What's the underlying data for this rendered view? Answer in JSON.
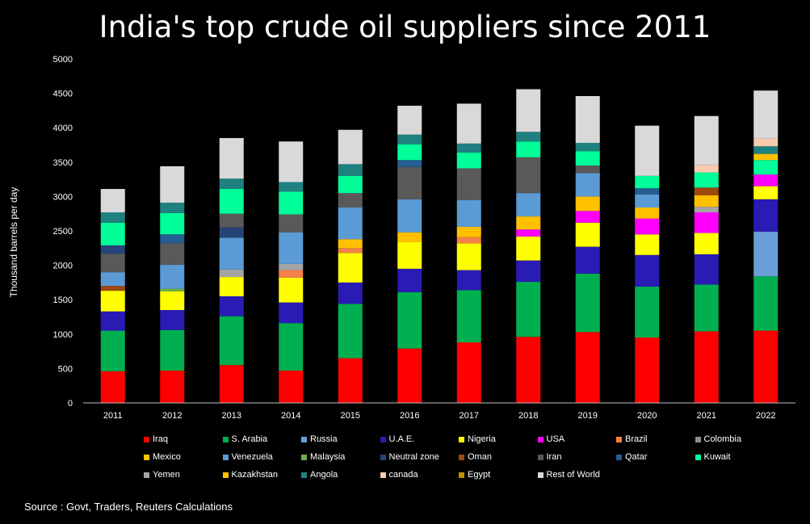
{
  "title": "India's top crude oil suppliers since 2011",
  "source": "Source : Govt, Traders, Reuters Calculations",
  "chart_data": {
    "type": "bar",
    "stacked": true,
    "title": "India's top crude oil suppliers since 2011",
    "xlabel": "",
    "ylabel": "Thousand barrels per day",
    "ylim": [
      0,
      5000
    ],
    "yticks": [
      0,
      500,
      1000,
      1500,
      2000,
      2500,
      3000,
      3500,
      4000,
      4500,
      5000
    ],
    "grid": false,
    "legend": "bottom",
    "categories": [
      "2011",
      "2012",
      "2013",
      "2014",
      "2015",
      "2016",
      "2017",
      "2018",
      "2019",
      "2020",
      "2021",
      "2022"
    ],
    "series": [
      {
        "name": "Iraq",
        "color": "#ff0000",
        "values": [
          460,
          470,
          550,
          470,
          650,
          790,
          880,
          960,
          1030,
          950,
          1040,
          1050
        ]
      },
      {
        "name": "S. Arabia",
        "color": "#00b050",
        "values": [
          590,
          590,
          710,
          690,
          790,
          820,
          760,
          800,
          850,
          740,
          680,
          790
        ]
      },
      {
        "name": "Russia",
        "color": "#6a9ed8",
        "values": [
          0,
          0,
          0,
          0,
          0,
          0,
          0,
          0,
          0,
          0,
          0,
          0
        ]
      },
      {
        "name": "U.A.E.",
        "color": "#2a1bb5",
        "values": [
          280,
          290,
          290,
          300,
          310,
          340,
          290,
          310,
          390,
          460,
          440,
          470
        ]
      },
      {
        "name": "Nigeria",
        "color": "#ffff00",
        "values": [
          300,
          270,
          280,
          360,
          430,
          390,
          390,
          350,
          350,
          300,
          310,
          190
        ]
      },
      {
        "name": "USA",
        "color": "#ff00ff",
        "values": [
          0,
          0,
          0,
          0,
          0,
          0,
          0,
          100,
          170,
          230,
          300,
          170
        ]
      },
      {
        "name": "Brazil",
        "color": "#f4804a",
        "values": [
          0,
          0,
          0,
          0,
          70,
          0,
          90,
          0,
          0,
          0,
          0,
          0
        ]
      },
      {
        "name": "Colombia",
        "color": "#8c8c8c",
        "values": [
          0,
          0,
          0,
          0,
          0,
          0,
          0,
          0,
          0,
          0,
          0,
          0
        ]
      },
      {
        "name": "Mexico",
        "color": "#ffc000",
        "values": [
          0,
          0,
          0,
          0,
          130,
          140,
          150,
          190,
          210,
          160,
          170,
          0
        ]
      },
      {
        "name": "Venezuela",
        "color": "#5b9bd5",
        "values": [
          200,
          350,
          0,
          0,
          0,
          0,
          0,
          0,
          0,
          0,
          0,
          0
        ]
      },
      {
        "name": "Malaysia",
        "color": "#70ad47",
        "values": [
          0,
          40,
          0,
          0,
          0,
          0,
          0,
          0,
          0,
          0,
          0,
          0
        ]
      },
      {
        "name": "Neutral zone",
        "color": "#264478",
        "values": [
          0,
          0,
          0,
          0,
          0,
          0,
          0,
          0,
          0,
          0,
          0,
          0
        ]
      },
      {
        "name": "Oman",
        "color": "#9e480e",
        "values": [
          70,
          0,
          0,
          0,
          0,
          0,
          0,
          0,
          0,
          0,
          0,
          0
        ]
      },
      {
        "name": "Iran",
        "color": "#595959",
        "values": [
          0,
          0,
          0,
          0,
          0,
          0,
          0,
          0,
          0,
          0,
          0,
          0
        ]
      },
      {
        "name": "Qatar",
        "color": "#255e91",
        "values": [
          0,
          0,
          0,
          0,
          0,
          0,
          0,
          0,
          0,
          0,
          0,
          0
        ]
      },
      {
        "name": "Kuwait",
        "color": "#00ff99",
        "values": [
          0,
          0,
          0,
          0,
          0,
          0,
          0,
          0,
          0,
          0,
          0,
          0
        ]
      },
      {
        "name": "Yemen",
        "color": "#a5a5a5",
        "values": [
          0,
          0,
          0,
          0,
          0,
          0,
          0,
          0,
          0,
          0,
          0,
          0
        ]
      },
      {
        "name": "Kazakhstan",
        "color": "#ffc000",
        "values": [
          0,
          0,
          0,
          0,
          0,
          0,
          0,
          0,
          0,
          0,
          0,
          0
        ]
      },
      {
        "name": "Angola",
        "color": "#1f8080",
        "values": [
          0,
          0,
          0,
          0,
          0,
          0,
          0,
          0,
          0,
          0,
          0,
          0
        ]
      },
      {
        "name": "canada",
        "color": "#f8cbad",
        "values": [
          0,
          0,
          0,
          0,
          0,
          0,
          0,
          0,
          0,
          0,
          0,
          0
        ]
      },
      {
        "name": "Egypt",
        "color": "#c09000",
        "values": [
          0,
          0,
          0,
          0,
          0,
          0,
          0,
          0,
          0,
          0,
          0,
          0
        ]
      },
      {
        "name": "Rest of World",
        "color": "#d9d9d9",
        "values": [
          0,
          0,
          0,
          0,
          0,
          0,
          0,
          0,
          0,
          0,
          0,
          0
        ]
      }
    ],
    "stack_order": [
      [
        "Iraq",
        "S. Arabia",
        "U.A.E.",
        "Nigeria",
        "Oman",
        "Malaysia",
        "Russia",
        "Venezuela",
        "Iran",
        "Neutral zone",
        "Kuwait",
        "Angola",
        "Rest of World"
      ],
      [
        "Iraq",
        "S. Arabia",
        "U.A.E.",
        "Nigeria",
        "Malaysia",
        "Venezuela",
        "Neutral zone",
        "Iran",
        "Qatar",
        "Kuwait",
        "Angola",
        "Rest of World"
      ],
      [
        "Iraq",
        "S. Arabia",
        "U.A.E.",
        "Nigeria",
        "Yemen",
        "Venezuela",
        "Neutral zone",
        "Iran",
        "Kuwait",
        "Angola",
        "Rest of World"
      ],
      [
        "Iraq",
        "S. Arabia",
        "U.A.E.",
        "Nigeria",
        "Brazil",
        "Yemen",
        "Venezuela",
        "Iran",
        "Kuwait",
        "Angola",
        "Rest of World"
      ],
      [
        "Iraq",
        "S. Arabia",
        "U.A.E.",
        "Nigeria",
        "Brazil",
        "Mexico",
        "Venezuela",
        "Iran",
        "Kuwait",
        "Angola",
        "Rest of World"
      ],
      [
        "Iraq",
        "S. Arabia",
        "U.A.E.",
        "Nigeria",
        "Mexico",
        "Venezuela",
        "Iran",
        "Qatar",
        "Kuwait",
        "Angola",
        "Rest of World"
      ],
      [
        "Iraq",
        "S. Arabia",
        "U.A.E.",
        "Nigeria",
        "Brazil",
        "Mexico",
        "Venezuela",
        "Iran",
        "Kuwait",
        "Angola",
        "Rest of World"
      ],
      [
        "Iraq",
        "S. Arabia",
        "U.A.E.",
        "Nigeria",
        "USA",
        "Mexico",
        "Venezuela",
        "Iran",
        "Kuwait",
        "Angola",
        "Rest of World"
      ],
      [
        "Iraq",
        "S. Arabia",
        "U.A.E.",
        "Nigeria",
        "USA",
        "Mexico",
        "Venezuela",
        "Iran",
        "Kuwait",
        "Angola",
        "Rest of World"
      ],
      [
        "Iraq",
        "S. Arabia",
        "U.A.E.",
        "Nigeria",
        "USA",
        "Mexico",
        "Venezuela",
        "Qatar",
        "Angola",
        "Kuwait",
        "Rest of World"
      ],
      [
        "Iraq",
        "S. Arabia",
        "U.A.E.",
        "Nigeria",
        "USA",
        "Yemen",
        "Mexico",
        "Oman",
        "Kuwait",
        "canada",
        "Rest of World"
      ],
      [
        "Iraq",
        "S. Arabia",
        "Russia",
        "U.A.E.",
        "Nigeria",
        "USA",
        "Kuwait",
        "Kazakhstan",
        "Angola",
        "canada",
        "Rest of World"
      ]
    ],
    "extra_values": {
      "Venezuela": [
        0,
        0,
        460,
        460,
        460,
        480,
        390,
        340,
        340,
        190,
        0,
        0
      ],
      "Russia": [
        0,
        0,
        0,
        0,
        0,
        0,
        0,
        0,
        0,
        0,
        0,
        650
      ],
      "Iran": [
        270,
        310,
        200,
        260,
        210,
        470,
        460,
        520,
        110,
        0,
        0,
        0
      ],
      "Neutral zone": [
        120,
        0,
        150,
        0,
        0,
        0,
        0,
        0,
        0,
        0,
        0,
        0
      ],
      "Qatar": [
        0,
        130,
        0,
        0,
        0,
        100,
        0,
        0,
        0,
        90,
        0,
        0
      ],
      "Kuwait": [
        330,
        310,
        360,
        330,
        250,
        230,
        230,
        230,
        210,
        180,
        220,
        210
      ],
      "Angola": [
        150,
        150,
        150,
        140,
        170,
        140,
        130,
        140,
        120,
        0,
        0,
        110
      ],
      "Rest of World": [
        340,
        530,
        590,
        590,
        500,
        420,
        580,
        620,
        680,
        730,
        710,
        700
      ],
      "Yemen": [
        0,
        0,
        110,
        90,
        0,
        0,
        0,
        0,
        0,
        0,
        80,
        0
      ],
      "Brazil": [
        0,
        0,
        0,
        110,
        0,
        0,
        0,
        0,
        0,
        0,
        0,
        0
      ],
      "Oman": [
        0,
        0,
        0,
        0,
        0,
        0,
        0,
        0,
        0,
        0,
        110,
        0
      ],
      "canada": [
        0,
        0,
        0,
        0,
        0,
        0,
        0,
        0,
        0,
        0,
        110,
        110
      ],
      "Kazakhstan": [
        0,
        0,
        0,
        0,
        0,
        0,
        0,
        0,
        0,
        0,
        0,
        90
      ]
    }
  },
  "legend_rows": [
    [
      "Iraq",
      "S. Arabia",
      "Russia",
      "U.A.E.",
      "Nigeria",
      "USA",
      "Brazil",
      "Colombia"
    ],
    [
      "Mexico",
      "Venezuela",
      "Malaysia",
      "Neutral zone",
      "Oman",
      "Iran",
      "Qatar",
      "Kuwait"
    ],
    [
      "Yemen",
      "Kazakhstan",
      "Angola",
      "canada",
      "Egypt",
      "Rest of World"
    ]
  ]
}
